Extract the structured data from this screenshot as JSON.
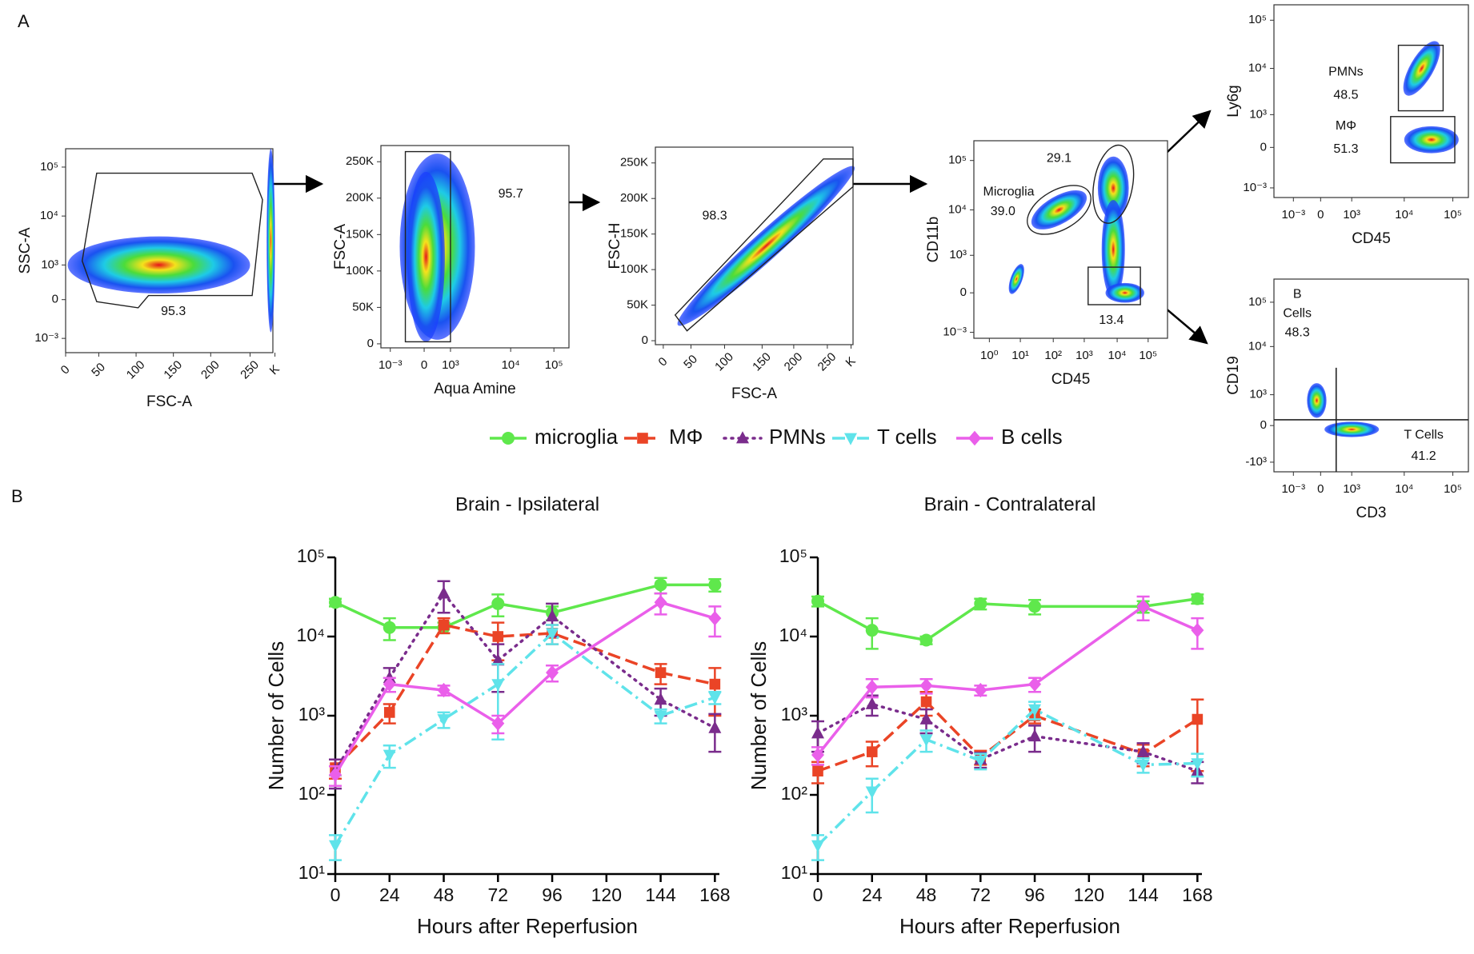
{
  "figure": {
    "panel_labels": [
      "A",
      "B"
    ],
    "flow_plots": [
      {
        "y_label": "SSC-A",
        "x_label": "FSC-A",
        "x_ticks": [
          0,
          50,
          100,
          150,
          200,
          250,
          "K"
        ],
        "y_ticks": [
          "10⁵",
          "10⁴",
          "10³",
          0,
          "10⁻³"
        ],
        "gate_labels": [
          "95.3"
        ]
      },
      {
        "y_label": "FSC-A",
        "x_label": "Aqua Amine",
        "x_ticks": [
          "10⁻³",
          0,
          "10³",
          "10⁴",
          "10⁵"
        ],
        "y_ticks": [
          "250K",
          "200K",
          "150K",
          "100K",
          "50K",
          0
        ],
        "gate_labels": [
          "95.7"
        ]
      },
      {
        "y_label": "FSC-H",
        "x_label": "FSC-A",
        "x_ticks": [
          0,
          50,
          100,
          150,
          200,
          250,
          "K"
        ],
        "y_ticks": [
          "250K",
          "200K",
          "150K",
          "100K",
          "50K",
          0
        ],
        "gate_labels": [
          "98.3"
        ]
      },
      {
        "y_label": "CD11b",
        "x_label": "CD45",
        "x_ticks": [
          "10⁰",
          "10¹",
          "10²",
          "10³",
          "10⁴",
          "10⁵"
        ],
        "y_ticks": [
          "10⁵",
          "10⁴",
          "10³",
          0,
          "10⁻³"
        ],
        "gate_labels": [
          "29.1",
          "Microglia",
          "39.0",
          "13.4"
        ]
      },
      {
        "y_label": "Ly6g",
        "x_label": "CD45",
        "x_ticks": [
          "10⁻³",
          0,
          "10³",
          "10⁴",
          "10⁵"
        ],
        "y_ticks": [
          "10⁵",
          "10⁴",
          "10³",
          0,
          "10⁻³"
        ],
        "gate_labels": [
          "PMNs",
          "48.5",
          "MΦ",
          "51.3"
        ]
      },
      {
        "y_label": "CD19",
        "x_label": "CD3",
        "x_ticks": [
          "10⁻³",
          0,
          "10³",
          "10⁴",
          "10⁵"
        ],
        "y_ticks": [
          "10⁵",
          "10⁴",
          "10³",
          0,
          "-10³"
        ],
        "gate_labels": [
          "B",
          "Cells",
          "48.3",
          "T Cells",
          "41.2"
        ]
      }
    ],
    "legend": [
      {
        "name": "microglia",
        "color": "#5fe84c",
        "marker": "circle",
        "line_style": "solid"
      },
      {
        "name": "MΦ",
        "color": "#ea4426",
        "marker": "square",
        "line_style": "dashed"
      },
      {
        "name": "PMNs",
        "color": "#7a2c8c",
        "marker": "triangle",
        "line_style": "dotted"
      },
      {
        "name": "T cells",
        "color": "#5fe3ea",
        "marker": "triangle-down",
        "line_style": "dashdot"
      },
      {
        "name": "B cells",
        "color": "#ea5fea",
        "marker": "diamond",
        "line_style": "solid"
      }
    ]
  },
  "chart_data": [
    {
      "type": "line",
      "title": "Brain - Ipsilateral",
      "xlabel": "Hours after Reperfusion",
      "ylabel": "Number of Cells",
      "x": [
        0,
        24,
        48,
        72,
        96,
        144,
        168
      ],
      "xlim": [
        0,
        170
      ],
      "xticks": [
        0,
        24,
        48,
        72,
        96,
        120,
        144,
        168
      ],
      "ylim": [
        10,
        100000
      ],
      "log": true,
      "yticks": [
        {
          "value": 10,
          "label": "10¹"
        },
        {
          "value": 100,
          "label": "10²"
        },
        {
          "value": 1000,
          "label": "10³"
        },
        {
          "value": 10000,
          "label": "10⁴"
        },
        {
          "value": 100000,
          "label": "10⁵"
        }
      ],
      "series": [
        {
          "values": [
            27000,
            13000,
            13000,
            26000,
            20000,
            45000,
            45000
          ],
          "errors": [
            3000,
            4000,
            2000,
            8000,
            4000,
            10000,
            8000
          ]
        },
        {
          "values": [
            220,
            1100,
            14000,
            10000,
            11000,
            3500,
            2500
          ],
          "errors": [
            60,
            300,
            3000,
            5000,
            3000,
            1000,
            1500
          ]
        },
        {
          "values": [
            200,
            3000,
            35000,
            5000,
            18000,
            1600,
            700
          ],
          "errors": [
            80,
            1000,
            15000,
            3000,
            8000,
            600,
            350
          ]
        },
        {
          "values": [
            23,
            320,
            900,
            2500,
            11000,
            1000,
            1700
          ],
          "errors": [
            8,
            100,
            200,
            2000,
            3000,
            200,
            300
          ]
        },
        {
          "values": [
            180,
            2500,
            2100,
            800,
            3500,
            27000,
            17000
          ],
          "errors": [
            50,
            500,
            300,
            200,
            800,
            8000,
            7000
          ]
        }
      ]
    },
    {
      "type": "line",
      "title": "Brain - Contralateral",
      "xlabel": "Hours after Reperfusion",
      "ylabel": "Number of Cells",
      "x": [
        0,
        24,
        48,
        72,
        96,
        144,
        168
      ],
      "xlim": [
        0,
        170
      ],
      "xticks": [
        0,
        24,
        48,
        72,
        96,
        120,
        144,
        168
      ],
      "ylim": [
        10,
        100000
      ],
      "log": true,
      "yticks": [
        {
          "value": 10,
          "label": "10¹"
        },
        {
          "value": 100,
          "label": "10²"
        },
        {
          "value": 1000,
          "label": "10³"
        },
        {
          "value": 10000,
          "label": "10⁴"
        },
        {
          "value": 100000,
          "label": "10⁵"
        }
      ],
      "series": [
        {
          "values": [
            28000,
            12000,
            9000,
            26000,
            24000,
            24000,
            30000
          ],
          "errors": [
            4000,
            5000,
            1000,
            4000,
            5000,
            4000,
            4000
          ]
        },
        {
          "values": [
            200,
            350,
            1500,
            300,
            1000,
            330,
            900
          ],
          "errors": [
            60,
            120,
            500,
            60,
            200,
            100,
            700
          ]
        },
        {
          "values": [
            600,
            1400,
            900,
            280,
            550,
            350,
            200
          ],
          "errors": [
            250,
            400,
            300,
            60,
            200,
            100,
            60
          ]
        },
        {
          "values": [
            23,
            110,
            500,
            270,
            1200,
            240,
            250
          ],
          "errors": [
            8,
            50,
            150,
            60,
            300,
            50,
            80
          ]
        },
        {
          "values": [
            320,
            2300,
            2400,
            2100,
            2500,
            24000,
            12000
          ],
          "errors": [
            80,
            600,
            500,
            300,
            500,
            8000,
            5000
          ]
        }
      ]
    }
  ]
}
